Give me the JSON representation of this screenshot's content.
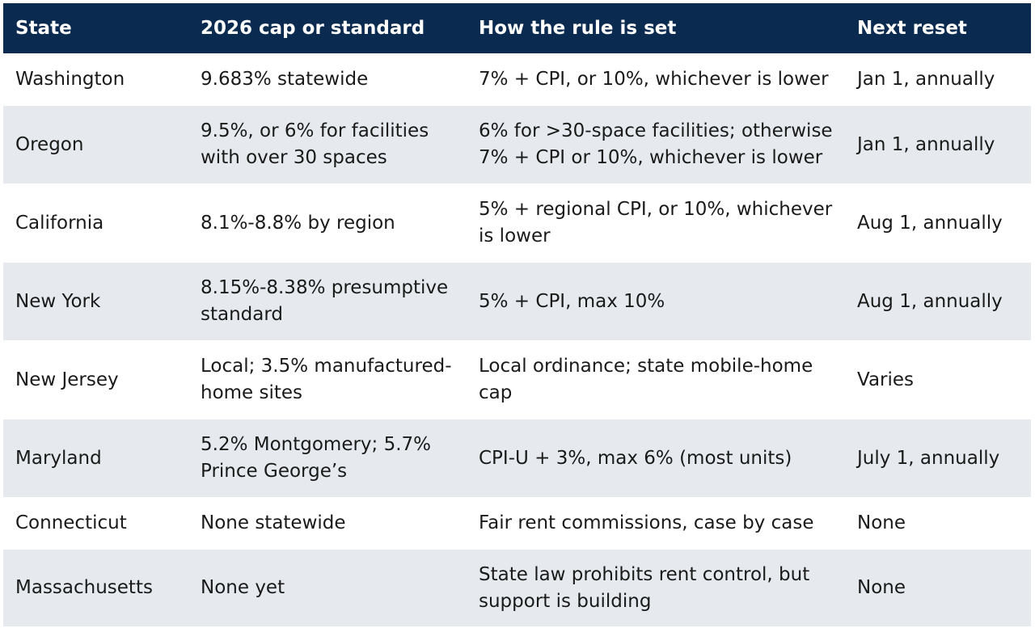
{
  "table": {
    "headers": [
      "State",
      "2026 cap or standard",
      "How the rule is set",
      "Next reset"
    ],
    "rows": [
      [
        "Washington",
        "9.683% statewide",
        "7% + CPI, or 10%, whichever is lower",
        "Jan 1, annually"
      ],
      [
        "Oregon",
        "9.5%, or 6% for facilities with over 30 spaces",
        "6% for >30-space facilities; otherwise 7% + CPI or 10%, whichever is lower",
        "Jan 1, annually"
      ],
      [
        "California",
        "8.1%-8.8% by region",
        "5% + regional CPI, or 10%, whichever is lower",
        "Aug 1, annually"
      ],
      [
        "New York",
        "8.15%-8.38% presumptive standard",
        "5% + CPI, max 10%",
        "Aug 1, annually"
      ],
      [
        "New Jersey",
        "Local; 3.5% manufactured-home sites",
        "Local ordinance; state mobile-home cap",
        "Varies"
      ],
      [
        "Maryland",
        "5.2% Montgomery; 5.7% Prince George’s",
        "CPI-U + 3%, max 6% (most units)",
        "July 1, annually"
      ],
      [
        "Connecticut",
        "None statewide",
        "Fair rent commissions, case by case",
        "None"
      ],
      [
        "Massachusetts",
        "None yet",
        "State law prohibits rent control, but support is building",
        "None"
      ]
    ]
  },
  "colors": {
    "header_bg": "#0b2a4f",
    "header_text": "#ffffff",
    "row_alt_bg": "#e6eaee",
    "row_bg": "#ffffff",
    "body_text": "#1a1a1a"
  }
}
